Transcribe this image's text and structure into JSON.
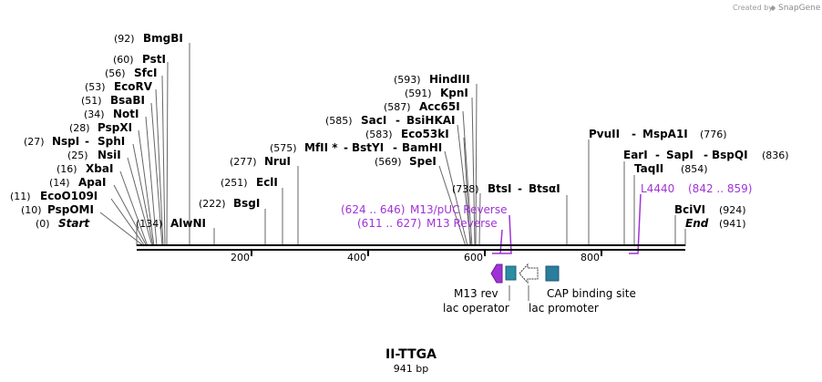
{
  "credit": {
    "created_by": "Created by",
    "brand": "SnapGene"
  },
  "map": {
    "name": "II-TTGA",
    "length_label": "941 bp",
    "ticks": [
      "200",
      "400",
      "600",
      "800"
    ],
    "sites_left": [
      {
        "pos": "(0)",
        "name": "Start",
        "italic": true
      },
      {
        "pos": "(10)",
        "name": "PspOMI"
      },
      {
        "pos": "(11)",
        "name": "EcoO109I"
      },
      {
        "pos": "(14)",
        "name": "ApaI"
      },
      {
        "pos": "(16)",
        "name": "XbaI"
      },
      {
        "pos": "(25)",
        "name": "NsiI"
      },
      {
        "pos": "(27)",
        "name": "NspI",
        "name2": "SphI"
      },
      {
        "pos": "(28)",
        "name": "PspXI"
      },
      {
        "pos": "(34)",
        "name": "NotI"
      },
      {
        "pos": "(51)",
        "name": "BsaBI"
      },
      {
        "pos": "(53)",
        "name": "EcoRV"
      },
      {
        "pos": "(56)",
        "name": "SfcI"
      },
      {
        "pos": "(60)",
        "name": "PstI"
      },
      {
        "pos": "(92)",
        "name": "BmgBI"
      },
      {
        "pos": "(134)",
        "name": "AlwNI"
      }
    ],
    "sites_mid": [
      {
        "pos": "(222)",
        "name": "BsgI"
      },
      {
        "pos": "(251)",
        "name": "EclI"
      },
      {
        "pos": "(277)",
        "name": "NruI"
      },
      {
        "pos": "(575)",
        "name": "MfII *",
        "name2": "BstYI",
        "name3": "BamHI"
      },
      {
        "pos": "(569)",
        "name": "SpeI"
      },
      {
        "pos": "(583)",
        "name": "Eco53kI"
      },
      {
        "pos": "(585)",
        "name": "SacI",
        "name2": "BsiHKAI"
      },
      {
        "pos": "(587)",
        "name": "Acc65I"
      },
      {
        "pos": "(591)",
        "name": "KpnI"
      },
      {
        "pos": "(593)",
        "name": "HindIII"
      },
      {
        "pos": "(738)",
        "name": "BtsI",
        "name2": "BtsαI"
      }
    ],
    "sites_right": [
      {
        "name": "PvuII",
        "name2": "MspA1I",
        "pos": "(776)"
      },
      {
        "name": "EarI",
        "name2": "SapI",
        "name3": "BspQI",
        "pos": "(836)"
      },
      {
        "name": "TaqII",
        "pos": "(854)"
      },
      {
        "name": "BciVI",
        "pos": "(924)"
      },
      {
        "name": "End",
        "pos": "(941)",
        "italic": true
      }
    ],
    "primers": [
      {
        "range": "(624 .. 646)",
        "name": "M13/pUC Reverse"
      },
      {
        "range": "(611 .. 627)",
        "name": "M13 Reverse"
      },
      {
        "name": "L4440",
        "range": "(842 .. 859)"
      }
    ],
    "features": [
      {
        "name": "M13 rev"
      },
      {
        "name": "lac operator"
      },
      {
        "name": "lac promoter"
      },
      {
        "name": "CAP binding site"
      }
    ],
    "colors": {
      "primer": "#a033d6",
      "operator": "#2b8ca3",
      "cap": "#2b7d9e",
      "backbone": "#000000"
    }
  }
}
